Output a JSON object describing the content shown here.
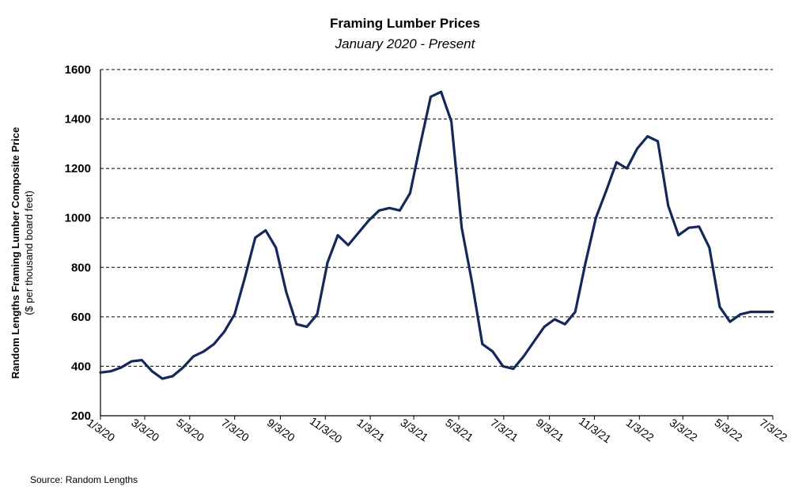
{
  "chart_data": {
    "type": "line",
    "title": "Framing Lumber Prices",
    "subtitle": "January 2020 - Present",
    "ylabel_line1": "Random Lengths  Framing Lumber Composite Price",
    "ylabel_line2": "($ per thousand board feet)",
    "xlabel": "",
    "source": "Source: Random Lengths",
    "ylim": [
      200,
      1600
    ],
    "yticks": [
      200,
      400,
      600,
      800,
      1000,
      1200,
      1400,
      1600
    ],
    "x_ticks": [
      "1/3/20",
      "3/3/20",
      "5/3/20",
      "7/3/20",
      "9/3/20",
      "11/3/20",
      "1/3/21",
      "3/3/21",
      "5/3/21",
      "7/3/21",
      "9/3/21",
      "11/3/21",
      "1/3/22",
      "3/3/22",
      "5/3/22",
      "7/3/22"
    ],
    "grid": "horizontal-dashed",
    "line_color": "#14285a",
    "series": [
      {
        "x": [
          "2020-01-03",
          "2020-01-17",
          "2020-01-31",
          "2020-02-14",
          "2020-02-28",
          "2020-03-13",
          "2020-03-27",
          "2020-04-10",
          "2020-04-24",
          "2020-05-08",
          "2020-05-22",
          "2020-06-05",
          "2020-06-19",
          "2020-07-03",
          "2020-07-17",
          "2020-07-31",
          "2020-08-14",
          "2020-08-28",
          "2020-09-11",
          "2020-09-25",
          "2020-10-09",
          "2020-10-23",
          "2020-11-06",
          "2020-11-20",
          "2020-12-04",
          "2020-12-18",
          "2021-01-01",
          "2021-01-15",
          "2021-01-29",
          "2021-02-12",
          "2021-02-26",
          "2021-03-12",
          "2021-03-26",
          "2021-04-09",
          "2021-04-23",
          "2021-05-07",
          "2021-05-21",
          "2021-06-04",
          "2021-06-18",
          "2021-07-02",
          "2021-07-16",
          "2021-07-30",
          "2021-08-13",
          "2021-08-27",
          "2021-09-10",
          "2021-09-24",
          "2021-10-08",
          "2021-10-22",
          "2021-11-05",
          "2021-11-19",
          "2021-12-03",
          "2021-12-17",
          "2021-12-31",
          "2022-01-14",
          "2022-01-28",
          "2022-02-11",
          "2022-02-25",
          "2022-03-11",
          "2022-03-25",
          "2022-04-08",
          "2022-04-22",
          "2022-05-06",
          "2022-05-20",
          "2022-06-03",
          "2022-06-17",
          "2022-07-01",
          "2022-07-03"
        ],
        "values": [
          375,
          380,
          395,
          420,
          425,
          380,
          350,
          360,
          395,
          440,
          460,
          490,
          540,
          610,
          760,
          920,
          950,
          880,
          700,
          570,
          560,
          610,
          820,
          930,
          890,
          940,
          990,
          1030,
          1040,
          1030,
          1100,
          1300,
          1490,
          1510,
          1390,
          960,
          740,
          490,
          460,
          400,
          390,
          440,
          500,
          560,
          590,
          570,
          620,
          820,
          1000,
          1110,
          1225,
          1200,
          1280,
          1330,
          1310,
          1050,
          930,
          960,
          965,
          880,
          640,
          580,
          610,
          620,
          620,
          620,
          620
        ]
      }
    ]
  }
}
